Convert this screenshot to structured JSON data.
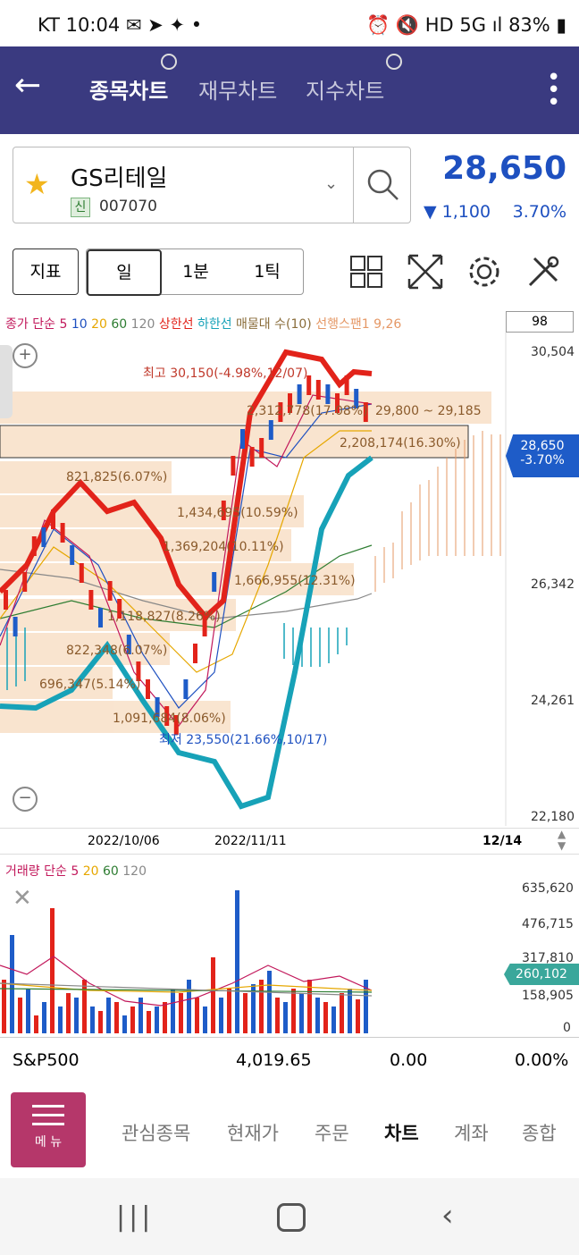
{
  "status": {
    "carrier": "KT",
    "time": "10:04",
    "battery": "83%",
    "net": "5G"
  },
  "header": {
    "tabs": [
      {
        "label": "종목차트",
        "active": true
      },
      {
        "label": "재무차트",
        "active": false
      },
      {
        "label": "지수차트",
        "active": false
      }
    ]
  },
  "stock": {
    "name": "GS리테일",
    "badge": "신",
    "code": "007070",
    "price": "28,650",
    "change": "1,100",
    "change_pct": "3.70%",
    "change_dir": "down"
  },
  "toolbar": {
    "indicator": "지표",
    "periods": [
      "일",
      "1분",
      "1틱"
    ]
  },
  "chart": {
    "legend": {
      "prefix": "종가 단순",
      "ma": [
        "5",
        "10",
        "20",
        "60",
        "120"
      ],
      "extras": [
        "상한선",
        "하한선",
        "매물대 수(10)",
        "선행스팬1 9,26"
      ]
    },
    "count_box": "98",
    "y_labels": [
      "30,504",
      "26,342",
      "24,261",
      "22,180"
    ],
    "x_labels": [
      "2022/10/06",
      "2022/11/11"
    ],
    "x_end": "12/14",
    "current_tag": {
      "price": "28,650",
      "pct": "-3.70%"
    },
    "high_annotation": "최고 30,150(-4.98%,12/07)",
    "low_annotation": "최저 23,550(21.66%,10/17)",
    "volume_profile": [
      "2,312,778(17.08%)",
      "29,800 ~ 29,185",
      "2,208,174(16.30%)",
      "821,825(6.07%)",
      "1,434,695(10.59%)",
      "1,369,204(10.11%)",
      "1,666,955(12.31%)",
      "1,118,827(8.26%)",
      "822,348(6.07%)",
      "696,347(5.14%)",
      "1,091,684(8.06%)"
    ]
  },
  "volume": {
    "legend": {
      "prefix": "거래량 단순",
      "ma": [
        "5",
        "20",
        "60",
        "120"
      ]
    },
    "y_labels": [
      "635,620",
      "476,715",
      "317,810",
      "158,905",
      "0"
    ],
    "current_tag": "260,102"
  },
  "index_bar": {
    "name": "S&P500",
    "value": "4,019.65",
    "change": "0.00",
    "pct": "0.00%"
  },
  "menu": {
    "button": "메 뉴",
    "items": [
      {
        "label": "관심종목",
        "active": false
      },
      {
        "label": "현재가",
        "active": false
      },
      {
        "label": "주문",
        "active": false
      },
      {
        "label": "차트",
        "active": true
      },
      {
        "label": "계좌",
        "active": false
      },
      {
        "label": "종합",
        "active": false
      }
    ]
  },
  "colors": {
    "header": "#3a3a80",
    "up": "#e2231a",
    "down": "#1e5cc8",
    "price": "#1e50c0"
  }
}
